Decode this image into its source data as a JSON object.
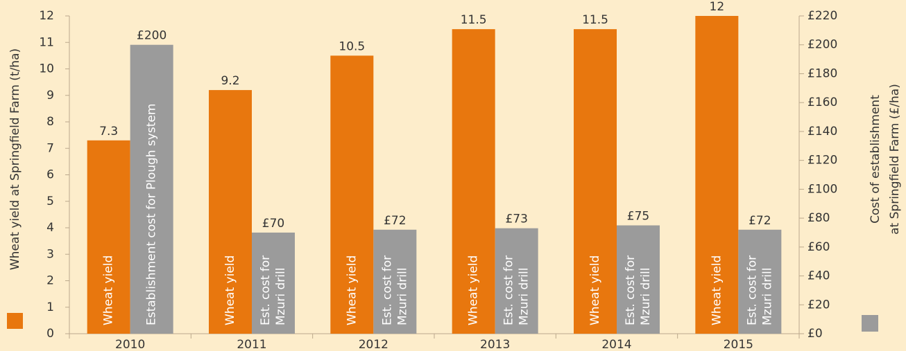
{
  "chart_data": {
    "type": "bar",
    "categories": [
      "2010",
      "2011",
      "2012",
      "2013",
      "2014",
      "2015"
    ],
    "series": [
      {
        "color": "#e8770e",
        "values": [
          7.3,
          9.2,
          10.5,
          11.5,
          11.5,
          12
        ],
        "bar_labels": [
          [
            "Wheat yield"
          ],
          [
            "Wheat yield"
          ],
          [
            "Wheat yield"
          ],
          [
            "Wheat yield"
          ],
          [
            "Wheat yield"
          ],
          [
            "Wheat yield"
          ]
        ]
      },
      {
        "color": "#9b9b9b",
        "axis": "y2",
        "values": [
          200,
          70,
          72,
          73,
          75,
          72
        ],
        "value_labels": [
          "£200",
          "£70",
          "£72",
          "£73",
          "£75",
          "£72"
        ],
        "bar_labels": [
          [
            "Establishment cost for Plough system"
          ],
          [
            "Est. cost for",
            "Mzuri drill"
          ],
          [
            "Est. cost for",
            "Mzuri drill"
          ],
          [
            "Est. cost for",
            "Mzuri drill"
          ],
          [
            "Est. cost for",
            "Mzuri drill"
          ],
          [
            "Est. cost for",
            "Mzuri drill"
          ]
        ]
      }
    ],
    "ylabel": [
      "Wheat yield at Springfield Farm (t/ha)"
    ],
    "y2label": [
      "Cost of establishment",
      "at Springfield Farm (£/ha)"
    ],
    "ylim": [
      0,
      12
    ],
    "yticks": [
      0,
      1,
      2,
      3,
      4,
      5,
      6,
      7,
      8,
      9,
      10,
      11,
      12
    ],
    "y2lim": [
      0,
      220
    ],
    "y2ticks": [
      {
        "value": 0,
        "label": "£0"
      },
      {
        "value": 20,
        "label": "£20"
      },
      {
        "value": 40,
        "label": "£40"
      },
      {
        "value": 60,
        "label": "£60"
      },
      {
        "value": 80,
        "label": "£80"
      },
      {
        "value": 100,
        "label": "£100"
      },
      {
        "value": 120,
        "label": "£120"
      },
      {
        "value": 140,
        "label": "£140"
      },
      {
        "value": 160,
        "label": "£160"
      },
      {
        "value": 180,
        "label": "£180"
      },
      {
        "value": 200,
        "label": "£200"
      },
      {
        "value": 220,
        "label": "£220"
      }
    ],
    "grid": false
  }
}
